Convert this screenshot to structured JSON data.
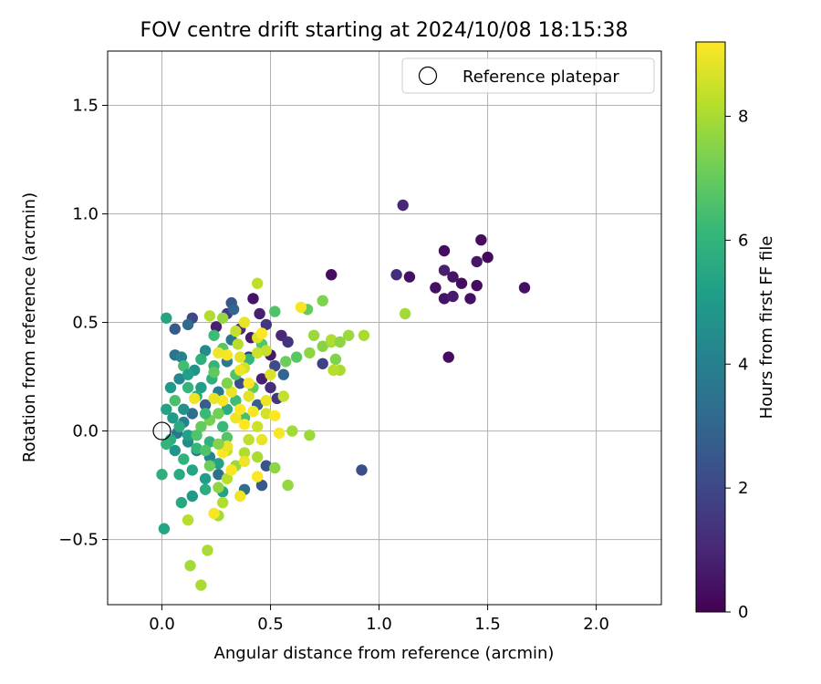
{
  "chart_data": {
    "type": "scatter",
    "title": "FOV centre drift starting at 2024/10/08 18:15:38",
    "xlabel": "Angular distance from reference (arcmin)",
    "ylabel": "Rotation from reference (arcmin)",
    "xlim": [
      -0.25,
      2.3
    ],
    "ylim": [
      -0.8,
      1.75
    ],
    "xticks": [
      0.0,
      0.5,
      1.0,
      1.5,
      2.0
    ],
    "xtick_labels": [
      "0.0",
      "0.5",
      "1.0",
      "1.5",
      "2.0"
    ],
    "yticks": [
      -0.5,
      0.0,
      0.5,
      1.0,
      1.5
    ],
    "ytick_labels": [
      "−0.5",
      "0.0",
      "0.5",
      "1.0",
      "1.5"
    ],
    "grid": true,
    "legend": {
      "position": "top-right",
      "entries": [
        "Reference platepar"
      ]
    },
    "reference_point": {
      "x": 0.0,
      "y": 0.0,
      "label": "Reference platepar",
      "marker": "open-circle"
    },
    "colorbar": {
      "label": "Hours from first FF file",
      "min": 0,
      "max": 9.2,
      "ticks": [
        0,
        2,
        4,
        6,
        8
      ],
      "colormap": "viridis",
      "stops": [
        "#440154",
        "#482878",
        "#3e4989",
        "#31688e",
        "#26828e",
        "#1f9e89",
        "#35b779",
        "#6ece58",
        "#b5de2b",
        "#fde725"
      ]
    },
    "series": [
      {
        "points": [
          [
            1.11,
            1.04,
            1.0
          ],
          [
            1.47,
            0.88,
            0.3
          ],
          [
            1.3,
            0.83,
            0.3
          ],
          [
            1.5,
            0.8,
            0.2
          ],
          [
            1.45,
            0.78,
            0.6
          ],
          [
            1.3,
            0.74,
            0.8
          ],
          [
            1.08,
            0.72,
            1.2
          ],
          [
            0.78,
            0.72,
            0.3
          ],
          [
            1.14,
            0.71,
            0.4
          ],
          [
            1.34,
            0.71,
            0.5
          ],
          [
            1.38,
            0.68,
            0.3
          ],
          [
            1.26,
            0.66,
            0.4
          ],
          [
            1.45,
            0.67,
            0.3
          ],
          [
            1.67,
            0.66,
            0.4
          ],
          [
            1.3,
            0.61,
            0.5
          ],
          [
            1.34,
            0.62,
            0.7
          ],
          [
            1.42,
            0.61,
            0.4
          ],
          [
            1.32,
            0.34,
            0.3
          ],
          [
            0.92,
            -0.18,
            2.2
          ],
          [
            0.74,
            0.31,
            1.8
          ],
          [
            0.55,
            0.44,
            1.0
          ],
          [
            0.58,
            0.41,
            1.4
          ],
          [
            0.48,
            0.49,
            1.5
          ],
          [
            0.45,
            0.54,
            0.8
          ],
          [
            0.42,
            0.61,
            0.5
          ],
          [
            0.32,
            0.59,
            2.5
          ],
          [
            0.3,
            0.54,
            1.6
          ],
          [
            0.25,
            0.48,
            0.8
          ],
          [
            0.36,
            0.47,
            1.2
          ],
          [
            0.41,
            0.43,
            0.7
          ],
          [
            0.5,
            0.35,
            0.6
          ],
          [
            0.4,
            0.34,
            1.3
          ],
          [
            0.52,
            0.3,
            2.1
          ],
          [
            0.56,
            0.26,
            3.0
          ],
          [
            0.5,
            0.2,
            1.2
          ],
          [
            0.46,
            0.24,
            0.8
          ],
          [
            0.53,
            0.15,
            1.5
          ],
          [
            0.44,
            0.12,
            2.8
          ],
          [
            0.48,
            -0.16,
            2.4
          ],
          [
            0.46,
            -0.25,
            2.6
          ],
          [
            0.38,
            -0.27,
            3.4
          ],
          [
            0.14,
            0.52,
            2.0
          ],
          [
            0.12,
            0.49,
            3.2
          ],
          [
            0.06,
            0.47,
            2.6
          ],
          [
            0.06,
            0.35,
            3.5
          ],
          [
            0.09,
            0.34,
            4.1
          ],
          [
            0.3,
            0.32,
            3.8
          ],
          [
            0.2,
            0.37,
            4.4
          ],
          [
            0.32,
            0.42,
            3.6
          ],
          [
            0.33,
            0.56,
            3.0
          ],
          [
            0.36,
            0.22,
            2.2
          ],
          [
            0.26,
            0.18,
            3.8
          ],
          [
            0.2,
            0.12,
            2.7
          ],
          [
            0.14,
            0.08,
            3.3
          ],
          [
            0.1,
            0.04,
            4.0
          ],
          [
            0.07,
            -0.01,
            3.6
          ],
          [
            0.12,
            -0.05,
            4.5
          ],
          [
            0.16,
            -0.09,
            3.9
          ],
          [
            0.22,
            -0.12,
            4.2
          ],
          [
            0.26,
            -0.2,
            3.4
          ],
          [
            0.06,
            -0.09,
            4.8
          ],
          [
            0.1,
            0.1,
            4.6
          ],
          [
            0.04,
            0.2,
            4.9
          ],
          [
            0.08,
            0.24,
            4.3
          ],
          [
            0.15,
            0.28,
            4.7
          ],
          [
            0.02,
            0.52,
            5.4
          ],
          [
            0.18,
            0.2,
            5.1
          ],
          [
            0.16,
            0.16,
            5.5
          ],
          [
            0.23,
            0.24,
            5.8
          ],
          [
            0.02,
            0.1,
            5.3
          ],
          [
            0.05,
            0.06,
            5.0
          ],
          [
            0.08,
            0.02,
            5.6
          ],
          [
            0.12,
            -0.02,
            5.2
          ],
          [
            0.04,
            -0.04,
            5.7
          ],
          [
            0.1,
            -0.13,
            5.9
          ],
          [
            0.14,
            -0.18,
            5.4
          ],
          [
            0.2,
            -0.22,
            5.1
          ],
          [
            0.26,
            -0.15,
            5.3
          ],
          [
            0.08,
            -0.2,
            5.6
          ],
          [
            0.09,
            -0.33,
            5.5
          ],
          [
            0.14,
            -0.3,
            4.9
          ],
          [
            0.2,
            -0.27,
            5.7
          ],
          [
            0.28,
            -0.28,
            5.3
          ],
          [
            0.16,
            -0.08,
            6.1
          ],
          [
            0.22,
            -0.05,
            5.9
          ],
          [
            0.28,
            0.02,
            6.2
          ],
          [
            0.3,
            0.1,
            5.7
          ],
          [
            0.34,
            0.14,
            6.3
          ],
          [
            0.24,
            0.3,
            6.0
          ],
          [
            0.18,
            0.33,
            5.8
          ],
          [
            0.1,
            0.3,
            6.4
          ],
          [
            0.12,
            0.26,
            5.2
          ],
          [
            0.06,
            0.14,
            6.5
          ],
          [
            0.02,
            -0.06,
            6.0
          ],
          [
            0.0,
            -0.2,
            5.8
          ],
          [
            0.01,
            -0.45,
            5.4
          ],
          [
            0.2,
            -0.09,
            6.6
          ],
          [
            0.3,
            -0.03,
            6.7
          ],
          [
            0.38,
            0.06,
            6.4
          ],
          [
            0.42,
            0.2,
            6.9
          ],
          [
            0.34,
            0.26,
            6.6
          ],
          [
            0.28,
            0.38,
            6.8
          ],
          [
            0.24,
            0.44,
            6.3
          ],
          [
            0.4,
            0.33,
            6.1
          ],
          [
            0.46,
            0.4,
            6.7
          ],
          [
            0.52,
            0.55,
            6.6
          ],
          [
            0.57,
            0.32,
            7.1
          ],
          [
            0.62,
            0.34,
            6.8
          ],
          [
            0.67,
            0.56,
            7.0
          ],
          [
            0.74,
            0.6,
            7.4
          ],
          [
            0.68,
            0.36,
            7.6
          ],
          [
            0.7,
            0.44,
            7.8
          ],
          [
            0.74,
            0.39,
            7.5
          ],
          [
            0.78,
            0.41,
            7.9
          ],
          [
            0.8,
            0.33,
            7.4
          ],
          [
            0.78,
            0.42,
            8.1
          ],
          [
            0.82,
            0.28,
            8.0
          ],
          [
            0.86,
            0.44,
            7.8
          ],
          [
            0.82,
            0.41,
            7.6
          ],
          [
            0.93,
            0.44,
            8.0
          ],
          [
            1.12,
            0.54,
            7.9
          ],
          [
            0.79,
            0.28,
            8.2
          ],
          [
            0.68,
            -0.02,
            7.8
          ],
          [
            0.6,
            0.0,
            7.9
          ],
          [
            0.58,
            -0.25,
            7.7
          ],
          [
            0.52,
            -0.17,
            7.6
          ],
          [
            0.44,
            -0.12,
            8.0
          ],
          [
            0.38,
            -0.1,
            8.1
          ],
          [
            0.34,
            -0.16,
            7.8
          ],
          [
            0.3,
            -0.22,
            8.2
          ],
          [
            0.26,
            -0.26,
            7.6
          ],
          [
            0.28,
            -0.33,
            8.1
          ],
          [
            0.26,
            -0.39,
            7.9
          ],
          [
            0.12,
            -0.41,
            8.2
          ],
          [
            0.21,
            -0.55,
            8.0
          ],
          [
            0.13,
            -0.62,
            7.9
          ],
          [
            0.18,
            -0.71,
            8.0
          ],
          [
            0.3,
            -0.09,
            8.4
          ],
          [
            0.4,
            -0.04,
            8.3
          ],
          [
            0.44,
            0.02,
            8.5
          ],
          [
            0.48,
            0.08,
            8.6
          ],
          [
            0.56,
            0.16,
            8.4
          ],
          [
            0.5,
            0.26,
            8.7
          ],
          [
            0.44,
            0.36,
            8.5
          ],
          [
            0.38,
            0.29,
            8.6
          ],
          [
            0.36,
            0.34,
            8.8
          ],
          [
            0.34,
            0.46,
            8.4
          ],
          [
            0.38,
            0.5,
            8.9
          ],
          [
            0.44,
            0.43,
            8.7
          ],
          [
            0.48,
            0.37,
            8.4
          ],
          [
            0.44,
            0.68,
            8.3
          ],
          [
            0.35,
            0.4,
            8.2
          ],
          [
            0.22,
            0.53,
            8.1
          ],
          [
            0.28,
            0.52,
            7.7
          ],
          [
            0.26,
            0.36,
            9.0
          ],
          [
            0.3,
            0.35,
            9.1
          ],
          [
            0.36,
            0.28,
            9.0
          ],
          [
            0.4,
            0.22,
            9.2
          ],
          [
            0.32,
            0.18,
            8.9
          ],
          [
            0.28,
            0.14,
            9.1
          ],
          [
            0.24,
            0.15,
            8.9
          ],
          [
            0.34,
            0.06,
            9.0
          ],
          [
            0.38,
            0.03,
            9.2
          ],
          [
            0.42,
            0.09,
            9.1
          ],
          [
            0.48,
            0.14,
            9.0
          ],
          [
            0.52,
            0.07,
            9.2
          ],
          [
            0.54,
            -0.01,
            9.1
          ],
          [
            0.46,
            -0.04,
            8.9
          ],
          [
            0.38,
            -0.14,
            9.0
          ],
          [
            0.32,
            -0.18,
            9.1
          ],
          [
            0.28,
            -0.1,
            9.2
          ],
          [
            0.24,
            -0.38,
            9.1
          ],
          [
            0.36,
            -0.3,
            9.0
          ],
          [
            0.44,
            -0.21,
            9.2
          ],
          [
            0.15,
            0.15,
            9.0
          ],
          [
            0.64,
            0.57,
            9.1
          ],
          [
            0.46,
            0.45,
            9.2
          ],
          [
            0.3,
            -0.07,
            8.9
          ],
          [
            0.36,
            0.1,
            9.2
          ],
          [
            0.4,
            0.16,
            8.8
          ],
          [
            0.22,
            0.05,
            7.3
          ],
          [
            0.18,
            0.02,
            7.0
          ],
          [
            0.26,
            0.08,
            7.2
          ],
          [
            0.3,
            0.22,
            7.4
          ],
          [
            0.24,
            0.27,
            6.9
          ],
          [
            0.2,
            0.08,
            6.2
          ],
          [
            0.16,
            -0.02,
            6.6
          ],
          [
            0.22,
            -0.16,
            7.1
          ],
          [
            0.26,
            -0.06,
            7.5
          ],
          [
            0.12,
            0.2,
            6.1
          ]
        ]
      }
    ]
  }
}
